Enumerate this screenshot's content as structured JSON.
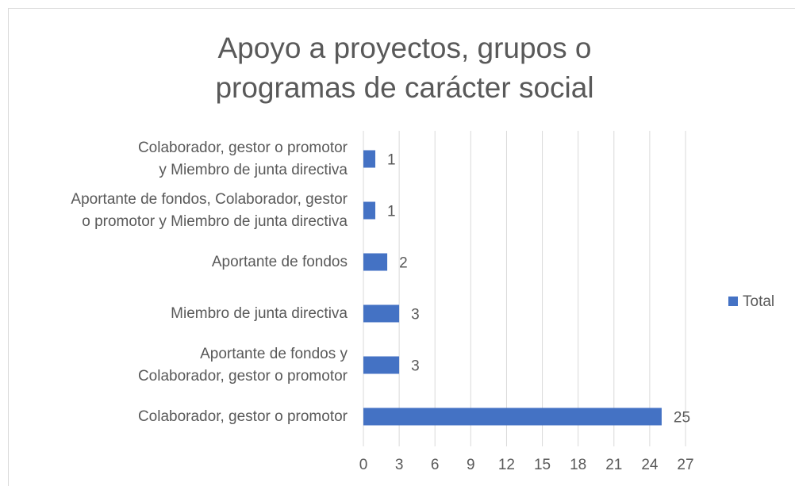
{
  "chart_data": {
    "type": "bar",
    "orientation": "horizontal",
    "title": "Apoyo a proyectos, grupos o programas de carácter social",
    "categories": [
      "Colaborador, gestor o promotor y Miembro de junta directiva",
      "Aportante de fondos, Colaborador, gestor o promotor y Miembro de junta directiva",
      "Aportante de fondos",
      "Miembro de junta directiva",
      "Aportante de fondos y Colaborador, gestor o promotor",
      "Colaborador, gestor o promotor"
    ],
    "series": [
      {
        "name": "Total",
        "color": "#4472c4",
        "values": [
          1,
          1,
          2,
          3,
          3,
          25
        ]
      }
    ],
    "xlim": [
      0,
      27
    ],
    "xticks": [
      0,
      3,
      6,
      9,
      12,
      15,
      18,
      21,
      24,
      27
    ],
    "grid": true,
    "legend": "right"
  }
}
